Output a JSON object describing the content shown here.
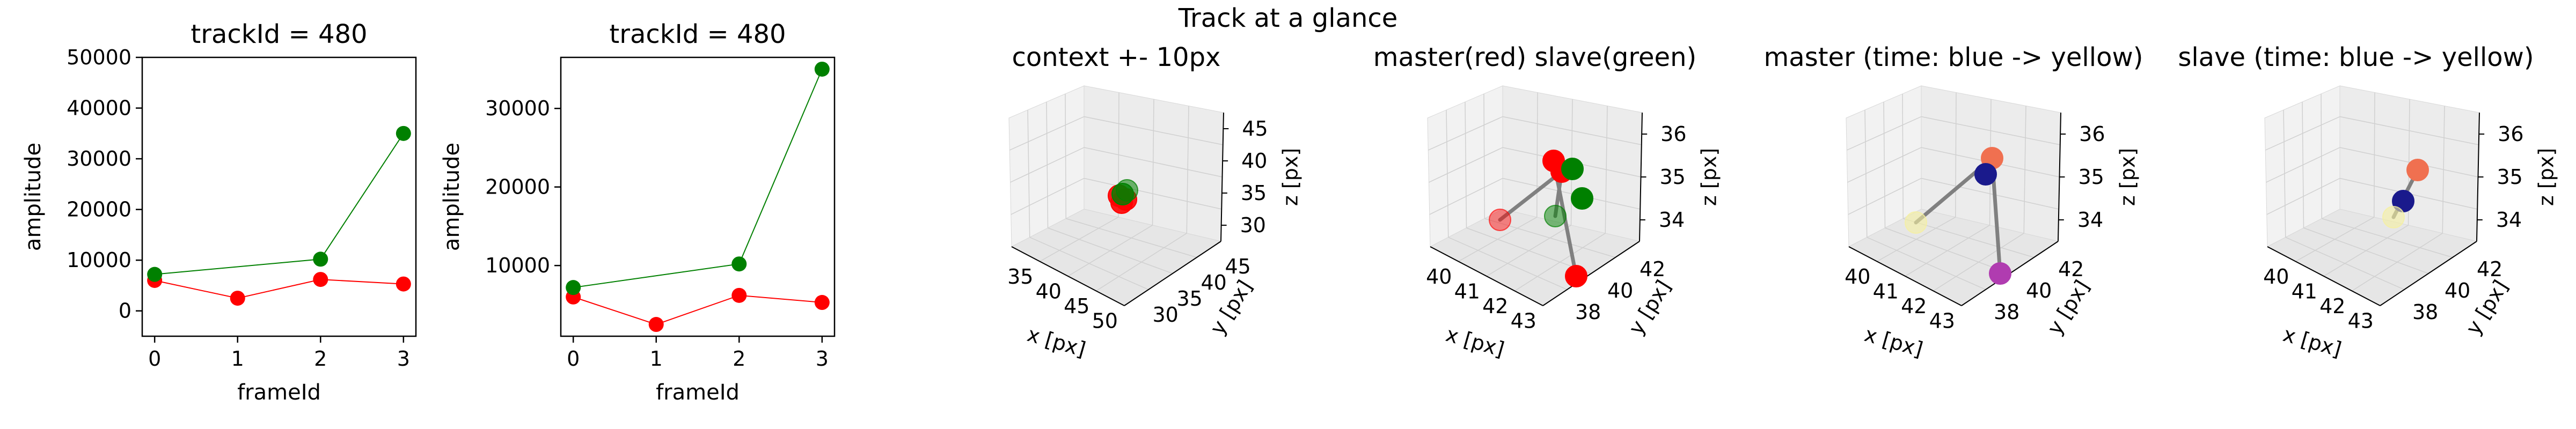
{
  "suptitle": "Track at a glance",
  "chart_data": [
    {
      "type": "line",
      "title": "trackId = 480",
      "xlabel": "frameId",
      "ylabel": "amplitude",
      "xlim": [
        -0.15,
        3.15
      ],
      "ylim": [
        -5000,
        50000
      ],
      "xticks": [
        "0",
        "1",
        "2",
        "3"
      ],
      "yticks": [
        "0",
        "10000",
        "20000",
        "30000",
        "40000",
        "50000"
      ],
      "series": [
        {
          "color": "#ff0000",
          "x": [
            0,
            1,
            2,
            3
          ],
          "y": [
            6000,
            2500,
            6200,
            5300
          ]
        },
        {
          "color": "#008000",
          "x": [
            0,
            2,
            3
          ],
          "y": [
            7200,
            10200,
            35000
          ]
        }
      ]
    },
    {
      "type": "line",
      "title": "trackId = 480",
      "xlabel": "frameId",
      "ylabel": "amplitude",
      "xlim": [
        -0.15,
        3.15
      ],
      "ylim": [
        1000,
        36500
      ],
      "xticks": [
        "0",
        "1",
        "2",
        "3"
      ],
      "yticks": [
        "10000",
        "20000",
        "30000"
      ],
      "series": [
        {
          "color": "#ff0000",
          "x": [
            0,
            1,
            2,
            3
          ],
          "y": [
            6000,
            2500,
            6200,
            5300
          ]
        },
        {
          "color": "#008000",
          "x": [
            0,
            2,
            3
          ],
          "y": [
            7200,
            10200,
            35000
          ]
        }
      ]
    },
    {
      "type": "scatter3d",
      "title": "context +- 10px",
      "xlabel": "x [px]",
      "ylabel": "y [px]",
      "zlabel": "z [px]",
      "xticks": [
        "35",
        "40",
        "45",
        "50"
      ],
      "yticks": [
        "30",
        "35",
        "40",
        "45"
      ],
      "zticks": [
        "30",
        "35",
        "40",
        "45"
      ],
      "points": [
        {
          "color": "#ff0000"
        },
        {
          "color": "#ff0000"
        },
        {
          "color": "#ff0000"
        },
        {
          "color": "#008000"
        },
        {
          "color": "#008000"
        }
      ]
    },
    {
      "type": "scatter3d",
      "title": "master(red) slave(green)",
      "xlabel": "x [px]",
      "ylabel": "y [px]",
      "zlabel": "z [px]",
      "xticks": [
        "40",
        "41",
        "42",
        "43"
      ],
      "yticks": [
        "38",
        "40",
        "42"
      ],
      "zticks": [
        "34",
        "35",
        "36"
      ],
      "points": [
        {
          "color": "#ff0000"
        },
        {
          "color": "#ff0000"
        },
        {
          "color": "#ff0000"
        },
        {
          "color": "#ff0000"
        },
        {
          "color": "#008000"
        },
        {
          "color": "#008000"
        },
        {
          "color": "#008000"
        }
      ]
    },
    {
      "type": "scatter3d",
      "title": "master (time: blue -> yellow)",
      "xlabel": "x [px]",
      "ylabel": "y [px]",
      "zlabel": "z [px]",
      "xticks": [
        "40",
        "41",
        "42",
        "43"
      ],
      "yticks": [
        "38",
        "40",
        "42"
      ],
      "zticks": [
        "34",
        "35",
        "36"
      ],
      "points": [
        {
          "color": "#f07050"
        },
        {
          "color": "#1a1a8c"
        },
        {
          "color": "#b03cb0"
        },
        {
          "color": "#f5f0a0"
        }
      ]
    },
    {
      "type": "scatter3d",
      "title": "slave (time: blue -> yellow)",
      "xlabel": "x [px]",
      "ylabel": "y [px]",
      "zlabel": "z [px]",
      "xticks": [
        "40",
        "41",
        "42",
        "43"
      ],
      "yticks": [
        "38",
        "40",
        "42"
      ],
      "zticks": [
        "34",
        "35",
        "36"
      ],
      "points": [
        {
          "color": "#f07050"
        },
        {
          "color": "#1a1a8c"
        },
        {
          "color": "#f5f0a0"
        }
      ]
    }
  ]
}
